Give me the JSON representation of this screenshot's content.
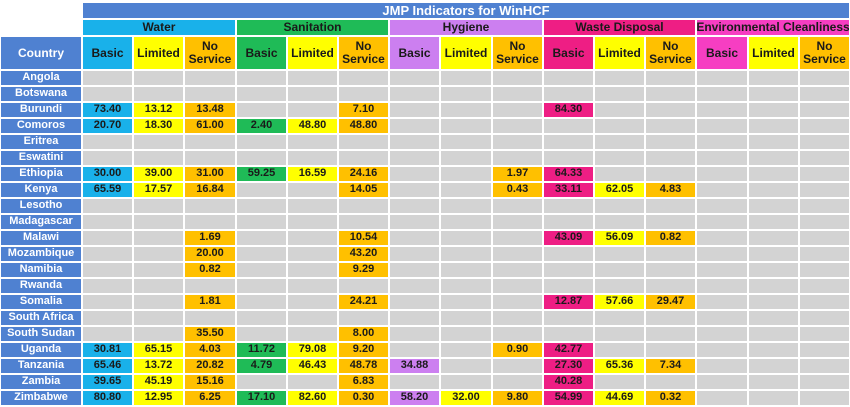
{
  "title": "JMP Indicators for WinHCF",
  "country_header": "Country",
  "groups": [
    {
      "label": "Water",
      "color": "#19b1ea"
    },
    {
      "label": "Sanitation",
      "color": "#1fbb57"
    },
    {
      "label": "Hygiene",
      "color": "#cc7ff0"
    },
    {
      "label": "Waste Disposal",
      "color": "#ee1e84"
    },
    {
      "label": "Environmental Cleanliness",
      "color": "#f63ec2"
    }
  ],
  "sub_headers": [
    "Basic",
    "Limited",
    "No Service"
  ],
  "sub_colors": {
    "limited": "#ffff00",
    "noservice": "#ffc000"
  },
  "empty_color": "#d3d3d3",
  "header_blue": "#4f81d1",
  "rows": [
    {
      "country": "Angola",
      "values": [
        "",
        "",
        "",
        "",
        "",
        "",
        "",
        "",
        "",
        "",
        "",
        "",
        "",
        "",
        ""
      ]
    },
    {
      "country": "Botswana",
      "values": [
        "",
        "",
        "",
        "",
        "",
        "",
        "",
        "",
        "",
        "",
        "",
        "",
        "",
        "",
        ""
      ]
    },
    {
      "country": "Burundi",
      "values": [
        "73.40",
        "13.12",
        "13.48",
        "",
        "",
        "7.10",
        "",
        "",
        "",
        "84.30",
        "",
        "",
        "",
        "",
        ""
      ]
    },
    {
      "country": "Comoros",
      "values": [
        "20.70",
        "18.30",
        "61.00",
        "2.40",
        "48.80",
        "48.80",
        "",
        "",
        "",
        "",
        "",
        "",
        "",
        "",
        ""
      ]
    },
    {
      "country": "Eritrea",
      "values": [
        "",
        "",
        "",
        "",
        "",
        "",
        "",
        "",
        "",
        "",
        "",
        "",
        "",
        "",
        ""
      ]
    },
    {
      "country": "Eswatini",
      "values": [
        "",
        "",
        "",
        "",
        "",
        "",
        "",
        "",
        "",
        "",
        "",
        "",
        "",
        "",
        ""
      ]
    },
    {
      "country": "Ethiopia",
      "values": [
        "30.00",
        "39.00",
        "31.00",
        "59.25",
        "16.59",
        "24.16",
        "",
        "",
        "1.97",
        "64.33",
        "",
        "",
        "",
        "",
        ""
      ]
    },
    {
      "country": "Kenya",
      "values": [
        "65.59",
        "17.57",
        "16.84",
        "",
        "",
        "14.05",
        "",
        "",
        "0.43",
        "33.11",
        "62.05",
        "4.83",
        "",
        "",
        ""
      ]
    },
    {
      "country": "Lesotho",
      "values": [
        "",
        "",
        "",
        "",
        "",
        "",
        "",
        "",
        "",
        "",
        "",
        "",
        "",
        "",
        ""
      ]
    },
    {
      "country": "Madagascar",
      "values": [
        "",
        "",
        "",
        "",
        "",
        "",
        "",
        "",
        "",
        "",
        "",
        "",
        "",
        "",
        ""
      ]
    },
    {
      "country": "Malawi",
      "values": [
        "",
        "",
        "1.69",
        "",
        "",
        "10.54",
        "",
        "",
        "",
        "43.09",
        "56.09",
        "0.82",
        "",
        "",
        ""
      ]
    },
    {
      "country": "Mozambique",
      "values": [
        "",
        "",
        "20.00",
        "",
        "",
        "43.20",
        "",
        "",
        "",
        "",
        "",
        "",
        "",
        "",
        ""
      ]
    },
    {
      "country": "Namibia",
      "values": [
        "",
        "",
        "0.82",
        "",
        "",
        "9.29",
        "",
        "",
        "",
        "",
        "",
        "",
        "",
        "",
        ""
      ]
    },
    {
      "country": "Rwanda",
      "values": [
        "",
        "",
        "",
        "",
        "",
        "",
        "",
        "",
        "",
        "",
        "",
        "",
        "",
        "",
        ""
      ]
    },
    {
      "country": "Somalia",
      "values": [
        "",
        "",
        "1.81",
        "",
        "",
        "24.21",
        "",
        "",
        "",
        "12.87",
        "57.66",
        "29.47",
        "",
        "",
        ""
      ]
    },
    {
      "country": "South Africa",
      "values": [
        "",
        "",
        "",
        "",
        "",
        "",
        "",
        "",
        "",
        "",
        "",
        "",
        "",
        "",
        ""
      ]
    },
    {
      "country": "South Sudan",
      "values": [
        "",
        "",
        "35.50",
        "",
        "",
        "8.00",
        "",
        "",
        "",
        "",
        "",
        "",
        "",
        "",
        ""
      ]
    },
    {
      "country": "Uganda",
      "values": [
        "30.81",
        "65.15",
        "4.03",
        "11.72",
        "79.08",
        "9.20",
        "",
        "",
        "0.90",
        "42.77",
        "",
        "",
        "",
        "",
        ""
      ]
    },
    {
      "country": "Tanzania",
      "values": [
        "65.46",
        "13.72",
        "20.82",
        "4.79",
        "46.43",
        "48.78",
        "34.88",
        "",
        "",
        "27.30",
        "65.36",
        "7.34",
        "",
        "",
        ""
      ]
    },
    {
      "country": "Zambia",
      "values": [
        "39.65",
        "45.19",
        "15.16",
        "",
        "",
        "6.83",
        "",
        "",
        "",
        "40.28",
        "",
        "",
        "",
        "",
        ""
      ]
    },
    {
      "country": "Zimbabwe",
      "values": [
        "80.80",
        "12.95",
        "6.25",
        "17.10",
        "82.60",
        "0.30",
        "58.20",
        "32.00",
        "9.80",
        "54.99",
        "44.69",
        "0.32",
        "",
        "",
        ""
      ]
    }
  ]
}
